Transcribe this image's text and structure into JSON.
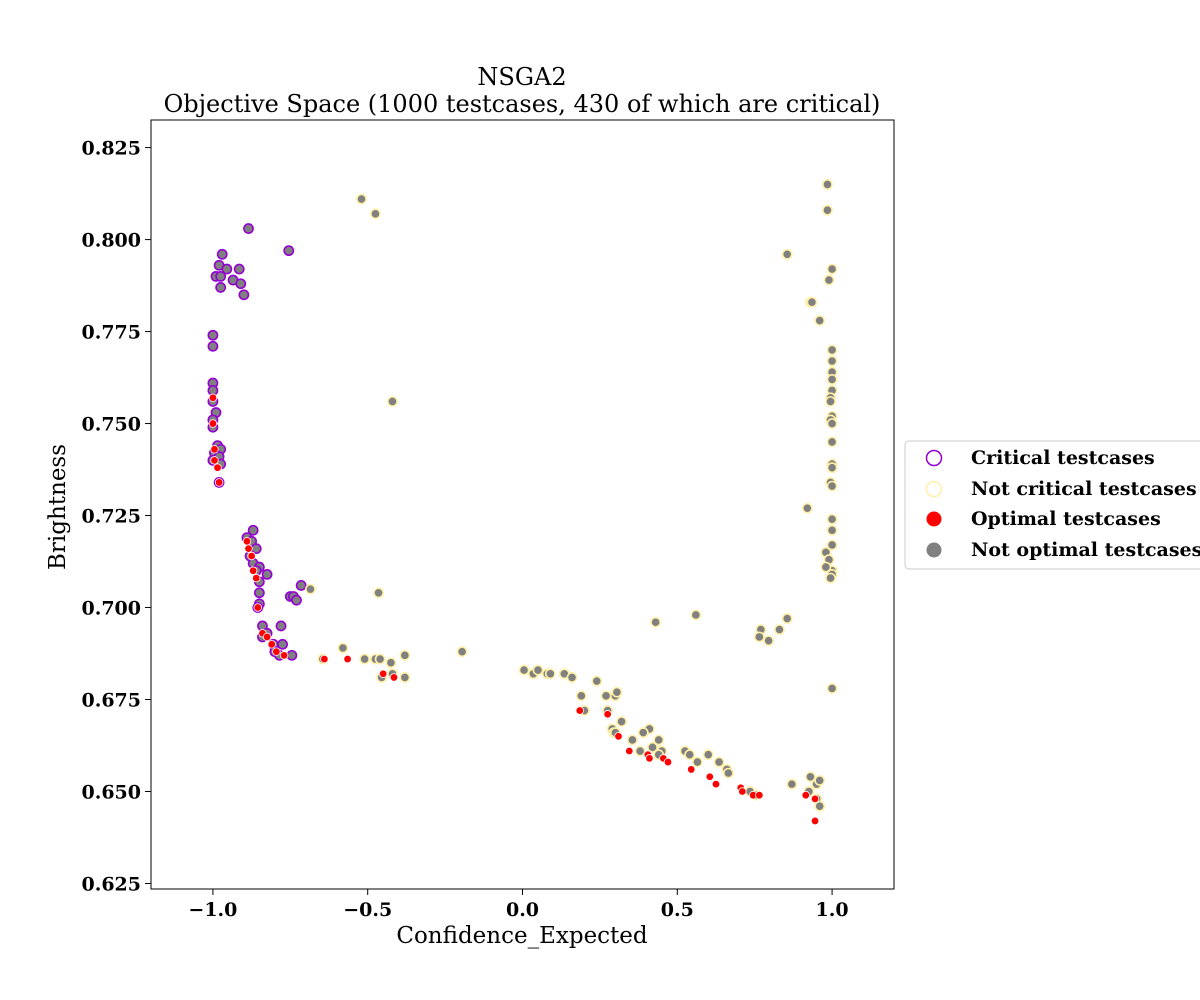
{
  "chart_data": {
    "type": "scatter",
    "title": "NSGA2",
    "subtitle": "Objective Space (1000 testcases, 430 of which are critical)",
    "xlabel": "Confidence_Expected",
    "ylabel": "Brightness",
    "xlim": [
      -1.2,
      1.2
    ],
    "ylim": [
      0.6235,
      0.8325
    ],
    "xticks": [
      -1.0,
      -0.5,
      0.0,
      0.5,
      1.0
    ],
    "xtick_labels": [
      "−1.0",
      "−0.5",
      "0.0",
      "0.5",
      "1.0"
    ],
    "yticks": [
      0.625,
      0.65,
      0.675,
      0.7,
      0.725,
      0.75,
      0.775,
      0.8,
      0.825
    ],
    "ytick_labels": [
      "0.625",
      "0.650",
      "0.675",
      "0.700",
      "0.725",
      "0.750",
      "0.775",
      "0.800",
      "0.825"
    ],
    "grid": false,
    "legend_placement": "right, outside plot",
    "colors": {
      "critical_edge": "#9400d3",
      "not_critical_edge": "#fff0a8",
      "optimal_fill": "#ff0000",
      "not_optimal_fill": "#808080"
    },
    "legend": [
      {
        "label": "Critical testcases",
        "marker": "open-circle",
        "color": "#9400d3"
      },
      {
        "label": "Not critical testcases",
        "marker": "open-circle",
        "color": "#fff0a8"
      },
      {
        "label": "Optimal testcases",
        "marker": "filled-circle",
        "color": "#ff0000"
      },
      {
        "label": "Not optimal testcases",
        "marker": "filled-circle",
        "color": "#808080"
      }
    ],
    "series": [
      {
        "name": "Critical testcases",
        "points": [
          [
            -0.885,
            0.803
          ],
          [
            -0.97,
            0.796
          ],
          [
            -0.98,
            0.793
          ],
          [
            -0.99,
            0.79
          ],
          [
            -0.975,
            0.79
          ],
          [
            -0.955,
            0.792
          ],
          [
            -0.935,
            0.789
          ],
          [
            -0.915,
            0.792
          ],
          [
            -0.91,
            0.788
          ],
          [
            -0.975,
            0.787
          ],
          [
            -0.9,
            0.785
          ],
          [
            -0.755,
            0.797
          ],
          [
            -1.0,
            0.774
          ],
          [
            -1.0,
            0.771
          ],
          [
            -1.0,
            0.761
          ],
          [
            -1.0,
            0.759
          ],
          [
            -1.0,
            0.756
          ],
          [
            -0.99,
            0.753
          ],
          [
            -1.0,
            0.751
          ],
          [
            -1.0,
            0.749
          ],
          [
            -0.985,
            0.744
          ],
          [
            -0.975,
            0.743
          ],
          [
            -0.995,
            0.742
          ],
          [
            -0.98,
            0.741
          ],
          [
            -1.0,
            0.74
          ],
          [
            -0.975,
            0.739
          ],
          [
            -0.98,
            0.734
          ],
          [
            -0.87,
            0.721
          ],
          [
            -0.89,
            0.719
          ],
          [
            -0.875,
            0.718
          ],
          [
            -0.86,
            0.716
          ],
          [
            -0.88,
            0.714
          ],
          [
            -0.87,
            0.712
          ],
          [
            -0.85,
            0.711
          ],
          [
            -0.86,
            0.71
          ],
          [
            -0.825,
            0.709
          ],
          [
            -0.85,
            0.707
          ],
          [
            -0.85,
            0.704
          ],
          [
            -0.85,
            0.701
          ],
          [
            -0.855,
            0.7
          ],
          [
            -0.84,
            0.695
          ],
          [
            -0.825,
            0.693
          ],
          [
            -0.84,
            0.692
          ],
          [
            -0.805,
            0.69
          ],
          [
            -0.78,
            0.695
          ],
          [
            -0.775,
            0.69
          ],
          [
            -0.75,
            0.703
          ],
          [
            -0.74,
            0.703
          ],
          [
            -0.73,
            0.702
          ],
          [
            -0.715,
            0.706
          ],
          [
            -0.745,
            0.687
          ],
          [
            -0.8,
            0.688
          ],
          [
            -0.785,
            0.687
          ]
        ]
      },
      {
        "name": "Not critical testcases",
        "points": [
          [
            -0.52,
            0.811
          ],
          [
            -0.475,
            0.807
          ],
          [
            -0.42,
            0.756
          ],
          [
            -0.465,
            0.704
          ],
          [
            -0.685,
            0.705
          ],
          [
            -0.58,
            0.689
          ],
          [
            -0.51,
            0.686
          ],
          [
            -0.475,
            0.686
          ],
          [
            -0.46,
            0.686
          ],
          [
            -0.425,
            0.685
          ],
          [
            -0.38,
            0.687
          ],
          [
            -0.455,
            0.681
          ],
          [
            -0.42,
            0.682
          ],
          [
            -0.38,
            0.681
          ],
          [
            -0.195,
            0.688
          ],
          [
            -0.645,
            0.686
          ],
          [
            0.005,
            0.683
          ],
          [
            0.035,
            0.682
          ],
          [
            0.05,
            0.683
          ],
          [
            0.08,
            0.682
          ],
          [
            0.09,
            0.682
          ],
          [
            0.135,
            0.682
          ],
          [
            0.16,
            0.681
          ],
          [
            0.24,
            0.68
          ],
          [
            0.19,
            0.676
          ],
          [
            0.27,
            0.676
          ],
          [
            0.3,
            0.676
          ],
          [
            0.305,
            0.677
          ],
          [
            0.2,
            0.672
          ],
          [
            0.275,
            0.672
          ],
          [
            0.32,
            0.669
          ],
          [
            0.29,
            0.667
          ],
          [
            0.295,
            0.666
          ],
          [
            0.3,
            0.666
          ],
          [
            0.41,
            0.667
          ],
          [
            0.39,
            0.666
          ],
          [
            0.355,
            0.664
          ],
          [
            0.44,
            0.664
          ],
          [
            0.38,
            0.661
          ],
          [
            0.42,
            0.662
          ],
          [
            0.45,
            0.661
          ],
          [
            0.44,
            0.66
          ],
          [
            0.525,
            0.661
          ],
          [
            0.54,
            0.66
          ],
          [
            0.565,
            0.658
          ],
          [
            0.6,
            0.66
          ],
          [
            0.635,
            0.658
          ],
          [
            0.66,
            0.656
          ],
          [
            0.665,
            0.655
          ],
          [
            0.43,
            0.696
          ],
          [
            0.56,
            0.698
          ],
          [
            0.77,
            0.694
          ],
          [
            0.765,
            0.692
          ],
          [
            0.795,
            0.691
          ],
          [
            0.83,
            0.694
          ],
          [
            0.855,
            0.697
          ],
          [
            0.735,
            0.65
          ],
          [
            0.755,
            0.649
          ],
          [
            0.87,
            0.652
          ],
          [
            0.925,
            0.65
          ],
          [
            0.93,
            0.654
          ],
          [
            0.95,
            0.652
          ],
          [
            0.96,
            0.653
          ],
          [
            0.95,
            0.648
          ],
          [
            0.96,
            0.646
          ],
          [
            0.92,
            0.727
          ],
          [
            0.985,
            0.815
          ],
          [
            0.985,
            0.808
          ],
          [
            0.855,
            0.796
          ],
          [
            1.0,
            0.792
          ],
          [
            0.99,
            0.789
          ],
          [
            0.93,
            0.783
          ],
          [
            0.935,
            0.783
          ],
          [
            0.96,
            0.778
          ],
          [
            1.0,
            0.77
          ],
          [
            1.0,
            0.767
          ],
          [
            1.0,
            0.764
          ],
          [
            1.0,
            0.762
          ],
          [
            1.0,
            0.759
          ],
          [
            0.995,
            0.757
          ],
          [
            0.995,
            0.756
          ],
          [
            1.0,
            0.752
          ],
          [
            0.995,
            0.751
          ],
          [
            1.0,
            0.75
          ],
          [
            1.0,
            0.745
          ],
          [
            1.0,
            0.739
          ],
          [
            1.0,
            0.738
          ],
          [
            0.995,
            0.734
          ],
          [
            1.0,
            0.733
          ],
          [
            1.0,
            0.724
          ],
          [
            1.0,
            0.721
          ],
          [
            1.0,
            0.717
          ],
          [
            0.98,
            0.715
          ],
          [
            0.99,
            0.713
          ],
          [
            1.0,
            0.71
          ],
          [
            1.0,
            0.709
          ],
          [
            0.98,
            0.711
          ],
          [
            0.995,
            0.708
          ],
          [
            1.0,
            0.678
          ]
        ]
      }
    ],
    "optimal_points": [
      [
        -1.0,
        0.757
      ],
      [
        -1.0,
        0.75
      ],
      [
        -0.995,
        0.743
      ],
      [
        -0.995,
        0.74
      ],
      [
        -0.985,
        0.738
      ],
      [
        -0.98,
        0.734
      ],
      [
        -0.89,
        0.718
      ],
      [
        -0.885,
        0.716
      ],
      [
        -0.875,
        0.714
      ],
      [
        -0.87,
        0.71
      ],
      [
        -0.86,
        0.708
      ],
      [
        -0.855,
        0.7
      ],
      [
        -0.84,
        0.693
      ],
      [
        -0.825,
        0.692
      ],
      [
        -0.81,
        0.69
      ],
      [
        -0.795,
        0.688
      ],
      [
        -0.77,
        0.687
      ],
      [
        -0.64,
        0.686
      ],
      [
        -0.565,
        0.686
      ],
      [
        -0.45,
        0.682
      ],
      [
        -0.415,
        0.681
      ],
      [
        0.185,
        0.672
      ],
      [
        0.275,
        0.671
      ],
      [
        0.31,
        0.665
      ],
      [
        0.345,
        0.661
      ],
      [
        0.405,
        0.66
      ],
      [
        0.41,
        0.659
      ],
      [
        0.455,
        0.659
      ],
      [
        0.47,
        0.658
      ],
      [
        0.545,
        0.656
      ],
      [
        0.605,
        0.654
      ],
      [
        0.625,
        0.652
      ],
      [
        0.705,
        0.651
      ],
      [
        0.71,
        0.65
      ],
      [
        0.745,
        0.649
      ],
      [
        0.765,
        0.649
      ],
      [
        0.915,
        0.649
      ],
      [
        0.945,
        0.648
      ],
      [
        0.945,
        0.642
      ]
    ]
  }
}
